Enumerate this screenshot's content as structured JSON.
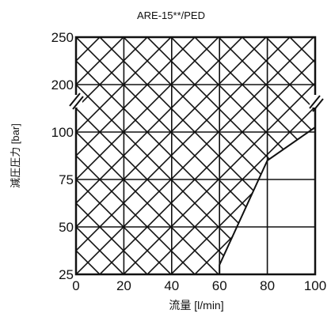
{
  "chart_data": {
    "type": "area",
    "title": "ARE-15**/PED",
    "xlabel": "流量 [l/min]",
    "ylabel": "減圧圧力 [bar]",
    "x_ticks": [
      "0",
      "20",
      "40",
      "60",
      "80",
      "100"
    ],
    "y_ticks": [
      "25",
      "50",
      "75",
      "100",
      "200",
      "250"
    ],
    "xlim": [
      0,
      100
    ],
    "y_axis_note": "broken axis between 100 and 200",
    "grid": true,
    "region": {
      "fill": "cross-hatch",
      "description_points": [
        {
          "x": 0,
          "y": 25
        },
        {
          "x": 60,
          "y": 25
        },
        {
          "x": 60,
          "y": 30
        },
        {
          "x": 80,
          "y": 85
        },
        {
          "x": 100,
          "y": 110
        },
        {
          "x": 100,
          "y": 250
        },
        {
          "x": 0,
          "y": 250
        }
      ]
    },
    "colors": {
      "line": "#111111",
      "background": "#ffffff"
    }
  }
}
